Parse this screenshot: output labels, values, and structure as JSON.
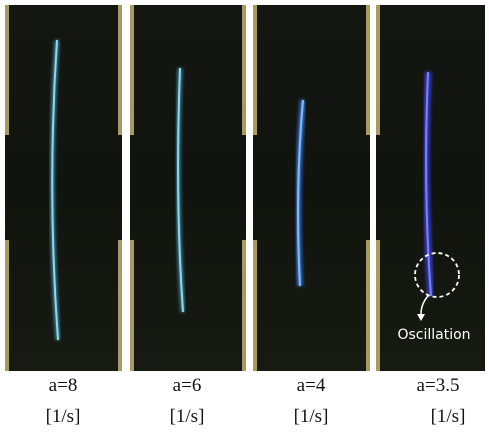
{
  "panels": [
    {
      "rate": "a=8",
      "unit": "[1/s]"
    },
    {
      "rate": "a=6",
      "unit": "[1/s]"
    },
    {
      "rate": "a=4",
      "unit": "[1/s]"
    },
    {
      "rate": "a=3.5",
      "unit": "[1/s]"
    }
  ],
  "annotation": "Oscillation"
}
